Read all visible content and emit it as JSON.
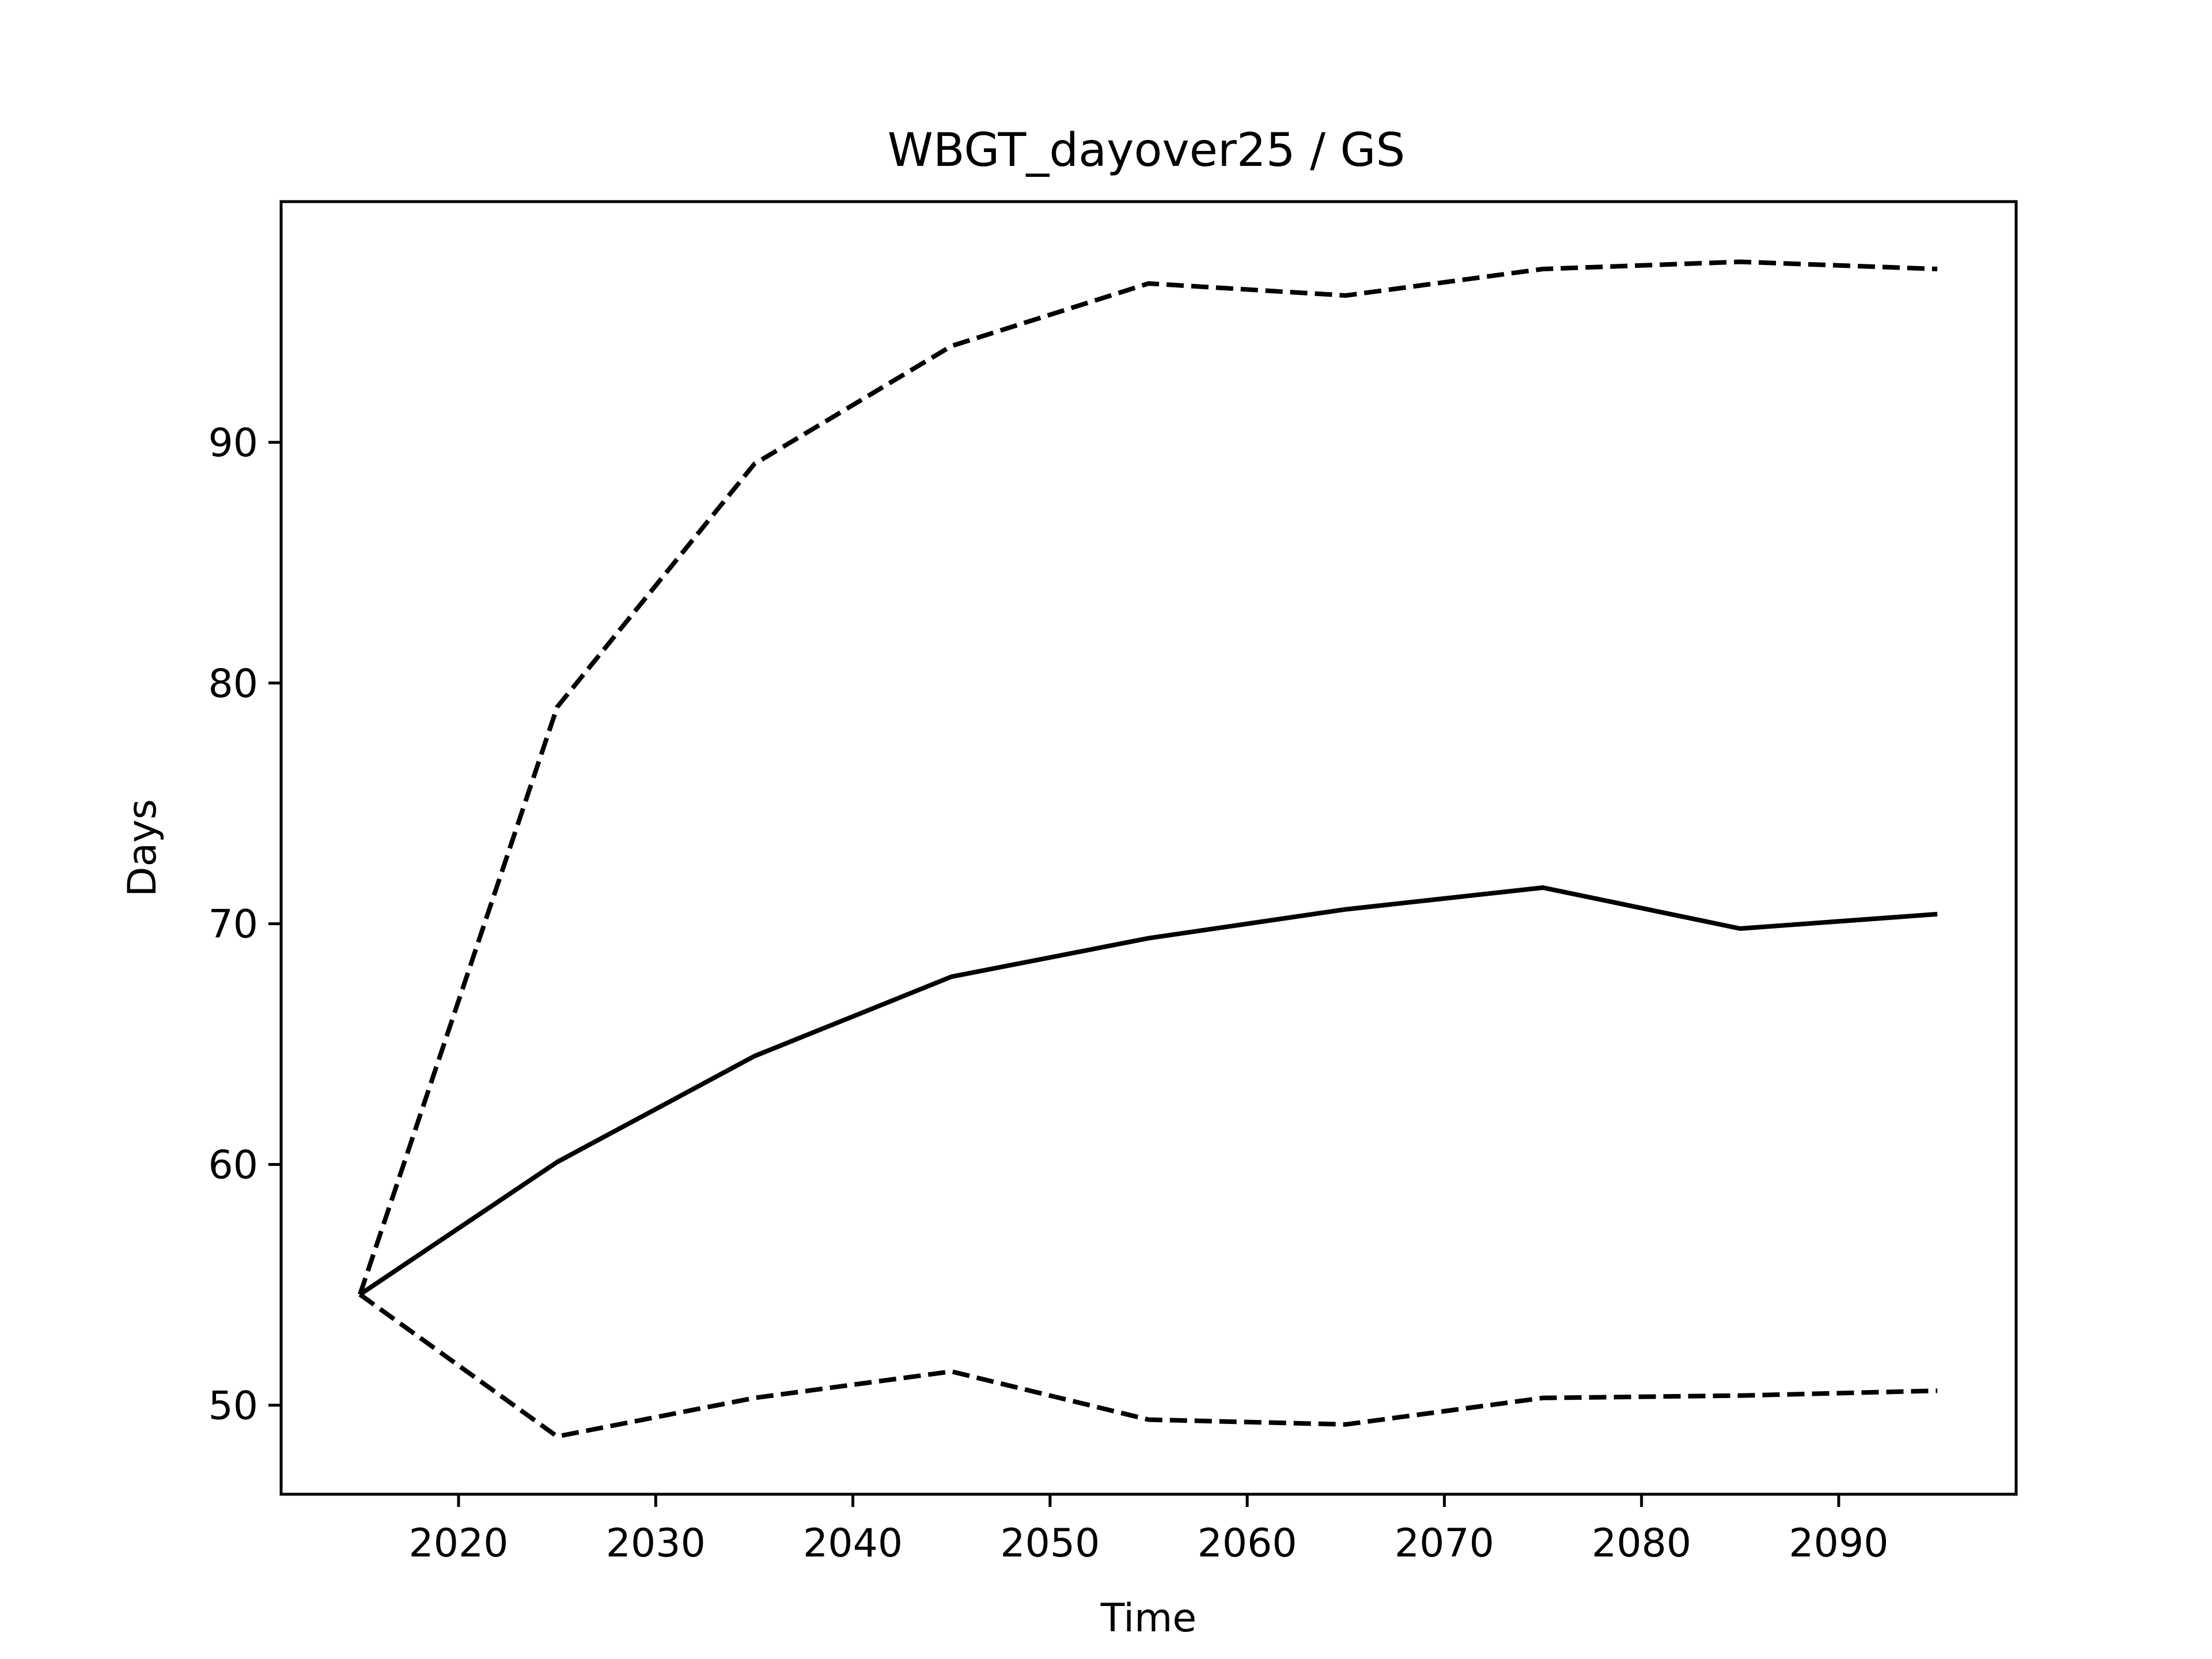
{
  "chart_data": {
    "type": "line",
    "title": "WBGT_dayover25 / GS",
    "xlabel": "Time",
    "ylabel": "Days",
    "xlim": [
      2011,
      2099
    ],
    "ylim": [
      46.3,
      100.0
    ],
    "xticks": [
      2020,
      2030,
      2040,
      2050,
      2060,
      2070,
      2080,
      2090
    ],
    "yticks": [
      50,
      60,
      70,
      80,
      90
    ],
    "grid": false,
    "legend": "none",
    "x": [
      2015,
      2025,
      2035,
      2045,
      2055,
      2065,
      2075,
      2085,
      2095
    ],
    "series": [
      {
        "style": "dashed",
        "color": "#000000",
        "values": [
          54.6,
          79.0,
          89.1,
          94.0,
          96.6,
          96.1,
          97.2,
          97.5,
          97.2
        ]
      },
      {
        "style": "solid",
        "color": "#000000",
        "values": [
          54.6,
          60.1,
          64.5,
          67.8,
          69.4,
          70.6,
          71.5,
          69.8,
          70.4
        ]
      },
      {
        "style": "dashed",
        "color": "#000000",
        "values": [
          54.6,
          48.7,
          50.3,
          51.4,
          49.4,
          49.2,
          50.3,
          50.4,
          50.6
        ]
      }
    ]
  }
}
